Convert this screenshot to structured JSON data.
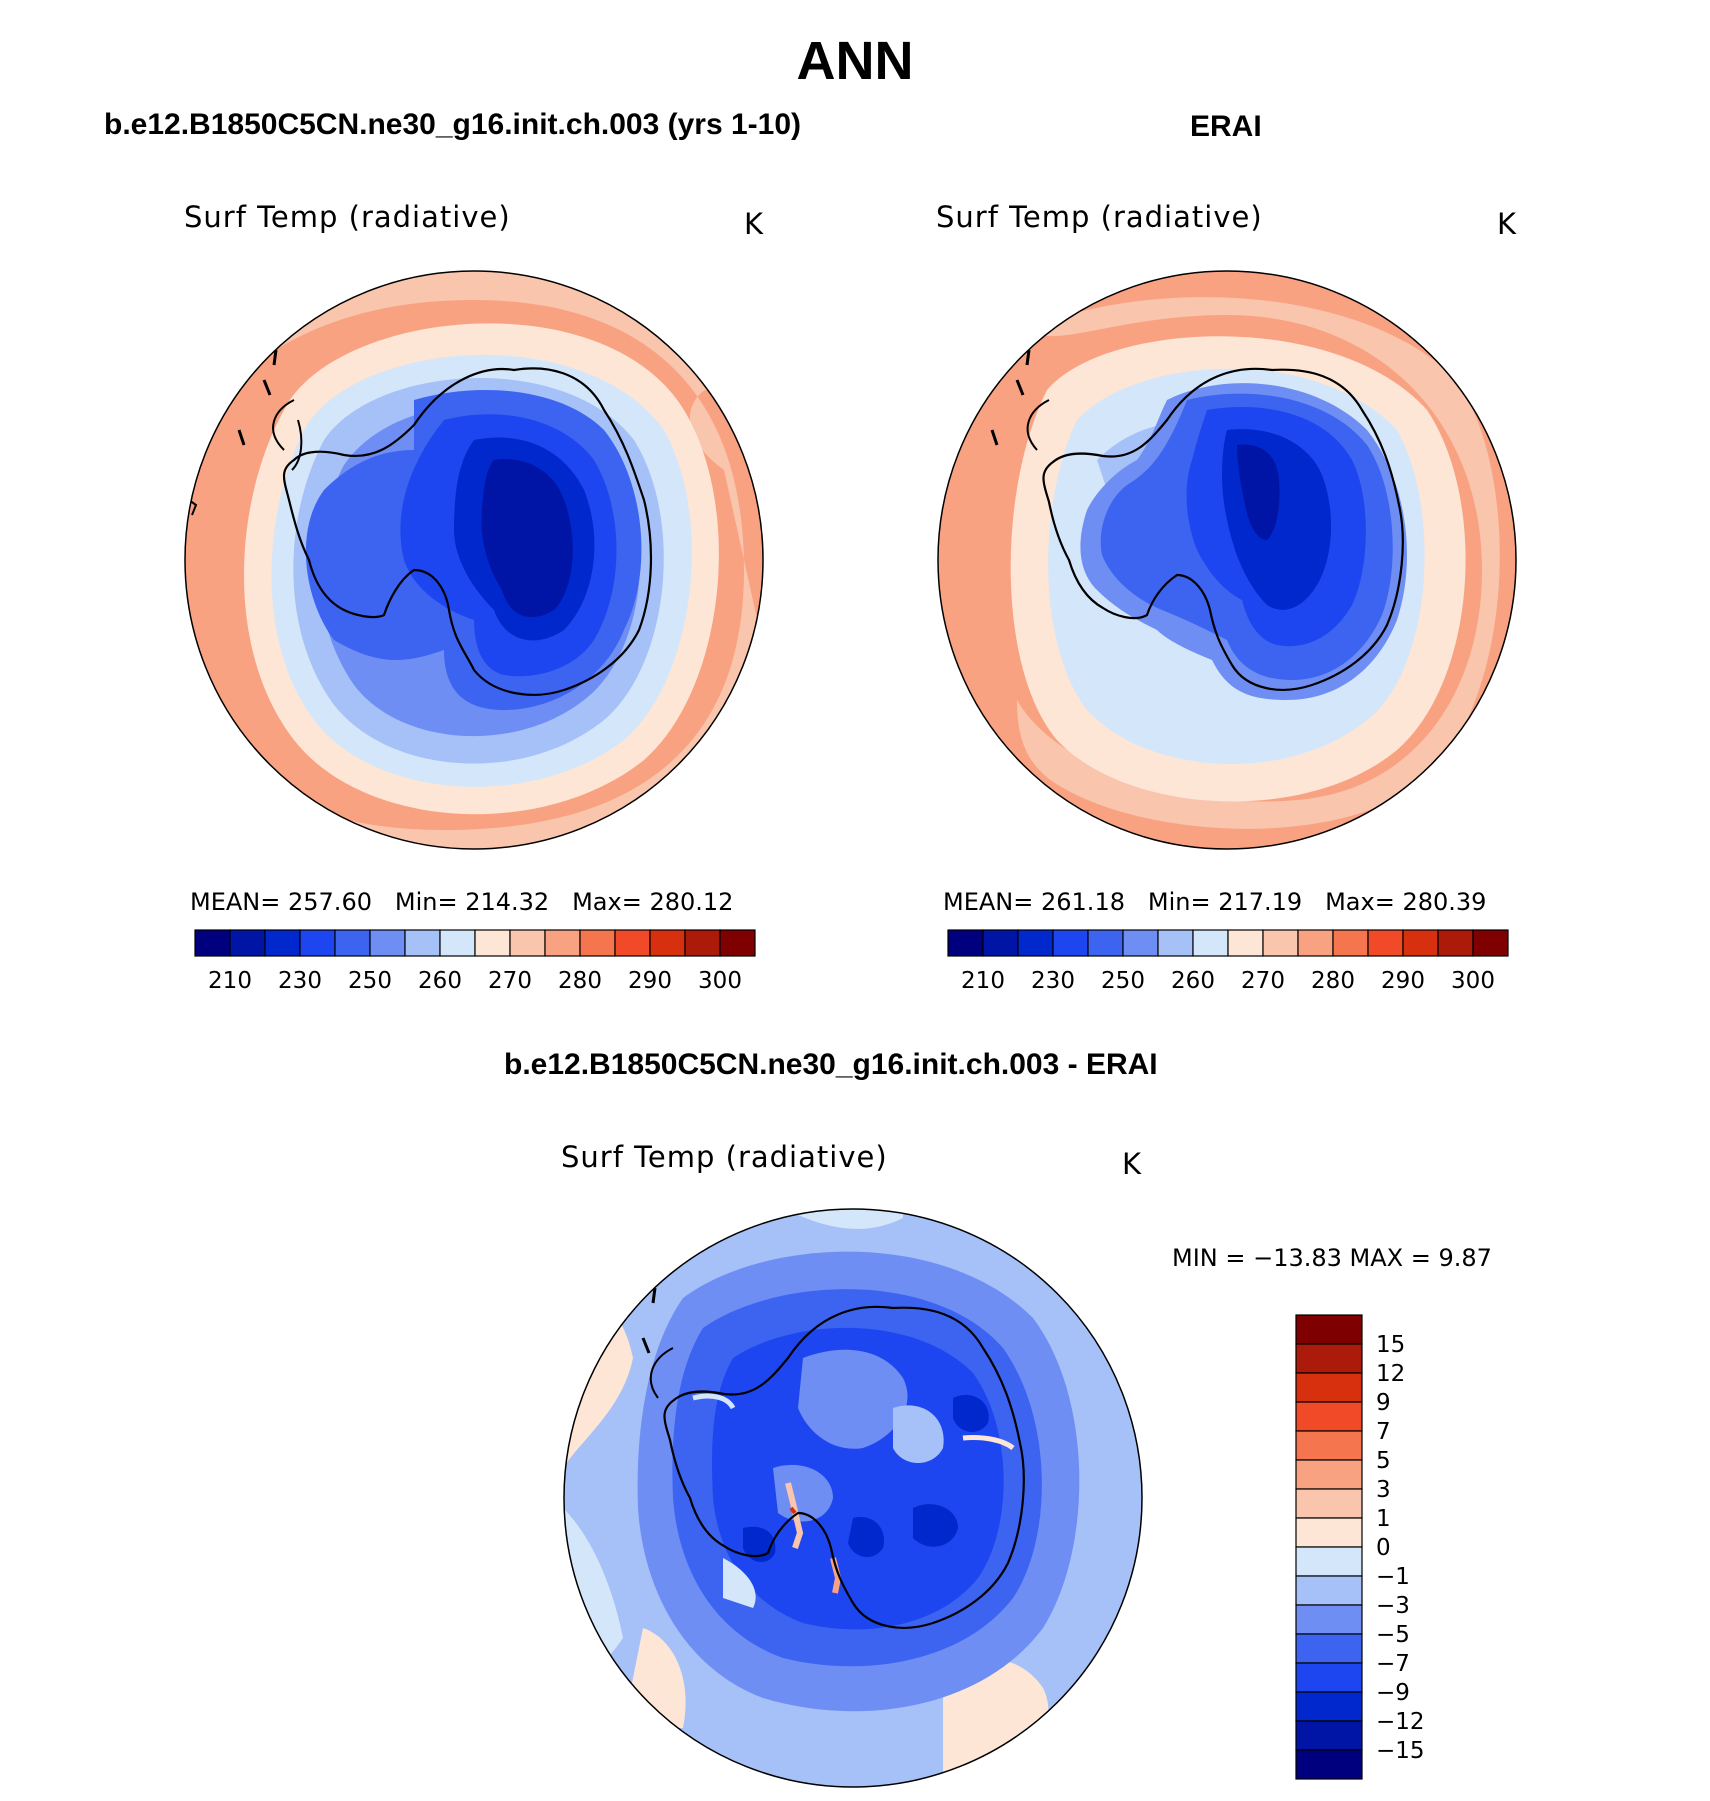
{
  "title": "ANN",
  "panels": [
    {
      "id": "model",
      "header": "b.e12.B1850C5CN.ne30_g16.init.ch.003 (yrs 1-10)",
      "variable": "Surf Temp (radiative)",
      "units": "K",
      "stats": {
        "mean_label": "MEAN=",
        "mean": "257.60",
        "min_label": "Min=",
        "min": "214.32",
        "max_label": "Max=",
        "max": "280.12"
      }
    },
    {
      "id": "obs",
      "header": "ERAI",
      "variable": "Surf Temp (radiative)",
      "units": "K",
      "stats": {
        "mean_label": "MEAN=",
        "mean": "261.18",
        "min_label": "Min=",
        "min": "217.19",
        "max_label": "Max=",
        "max": "280.39"
      }
    },
    {
      "id": "diff",
      "header": "b.e12.B1850C5CN.ne30_g16.init.ch.003 - ERAI",
      "variable": "Surf Temp (radiative)",
      "units": "K",
      "range_text": "MIN = −13.83 MAX =     9.87"
    }
  ],
  "colorbar_abs": {
    "labels": [
      "210",
      "230",
      "250",
      "260",
      "270",
      "280",
      "290",
      "300"
    ],
    "colors": [
      "#00007f",
      "#0014a5",
      "#0028cc",
      "#1e46f0",
      "#3c64f0",
      "#6e8ef4",
      "#a6c0f8",
      "#d4e6fa",
      "#fde6d6",
      "#fac5ad",
      "#f8a282",
      "#f5764e",
      "#f04a28",
      "#d6300f",
      "#ac1a0a",
      "#7f0000"
    ]
  },
  "colorbar_diff": {
    "labels": [
      "15",
      "12",
      "9",
      "7",
      "5",
      "3",
      "1",
      "0",
      "−1",
      "−3",
      "−5",
      "−7",
      "−9",
      "−12",
      "−15"
    ],
    "colors": [
      "#7f0000",
      "#ac1a0a",
      "#d6300f",
      "#f04a28",
      "#f5764e",
      "#f8a282",
      "#fac5ad",
      "#fde6d6",
      "#d4e6fa",
      "#a6c0f8",
      "#6e8ef4",
      "#3c64f0",
      "#1e46f0",
      "#0028cc",
      "#0014a5",
      "#00007f"
    ]
  }
}
